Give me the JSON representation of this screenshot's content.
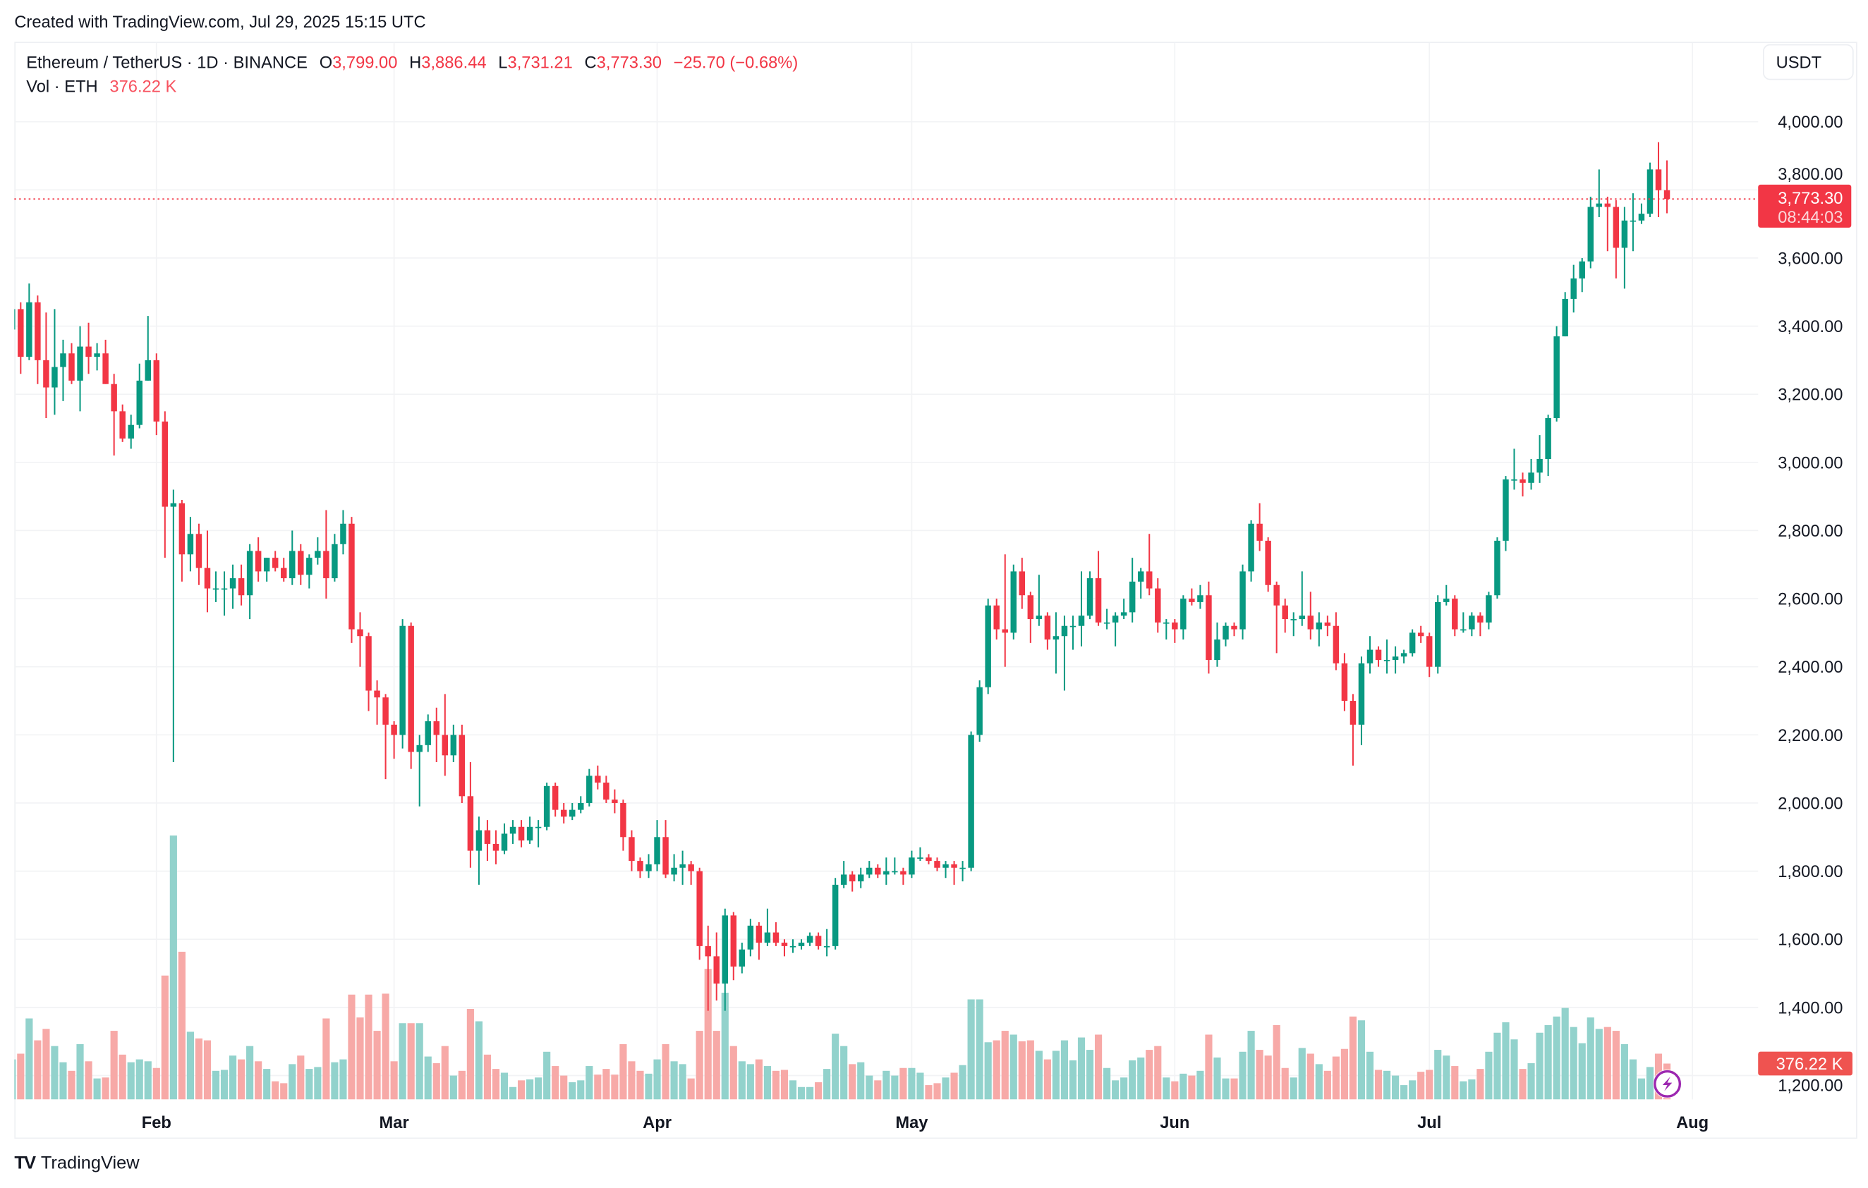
{
  "watermark": "Created with TradingView.com, Jul 29, 2025 15:15 UTC",
  "legend": {
    "symbol": "Ethereum / TetherUS · 1D · BINANCE",
    "o_label": "O",
    "o": "3,799.00",
    "h_label": "H",
    "h": "3,886.44",
    "l_label": "L",
    "l": "3,731.21",
    "c_label": "C",
    "c": "3,773.30",
    "change": "−25.70 (−0.68%)",
    "vol_label": "Vol · ETH",
    "vol": "376.22 K"
  },
  "currency_button": "USDT",
  "last_price": {
    "label": "3,773.30",
    "countdown": "08:44:03",
    "value": 3773.3
  },
  "last_volume": {
    "label": "376.22 K",
    "value": 376.22
  },
  "footer": {
    "logo_text": "TradingView",
    "logo_mark": "TV"
  },
  "icons": {
    "lightning": "lightning-icon",
    "logo": "tradingview-logo-icon"
  },
  "chart_data": {
    "type": "candlestick",
    "title": "Ethereum / TetherUS · 1D · BINANCE",
    "colors": {
      "up": "#089981",
      "down": "#f23645",
      "vol_up": "#92d2cc",
      "vol_down": "#f7a9a7",
      "lightning": "#9c27b0"
    },
    "ylim": [
      1150,
      4100
    ],
    "price_ticks": [
      "4,000.00",
      "3,800.00",
      "3,600.00",
      "3,400.00",
      "3,200.00",
      "3,000.00",
      "2,800.00",
      "2,600.00",
      "2,400.00",
      "2,200.00",
      "2,000.00",
      "1,800.00",
      "1,600.00",
      "1,400.00",
      "1,200.00"
    ],
    "price_tick_values": [
      4000,
      3800,
      3600,
      3400,
      3200,
      3000,
      2800,
      2600,
      2400,
      2200,
      2000,
      1800,
      1600,
      1400,
      1200
    ],
    "time_ticks": [
      "Feb",
      "Mar",
      "Apr",
      "May",
      "Jun",
      "Jul",
      "Aug"
    ],
    "first_date": "2025-01-15",
    "last_date": "2025-07-29",
    "grid": true,
    "candle_fields": [
      "open",
      "high",
      "low",
      "close",
      "volume_k"
    ],
    "candles": [
      [
        3390,
        3480,
        3280,
        3450,
        420
      ],
      [
        3450,
        3470,
        3260,
        3310,
        480
      ],
      [
        3310,
        3525,
        3300,
        3470,
        850
      ],
      [
        3470,
        3490,
        3230,
        3300,
        620
      ],
      [
        3300,
        3440,
        3130,
        3220,
        740
      ],
      [
        3220,
        3450,
        3140,
        3280,
        560
      ],
      [
        3280,
        3360,
        3180,
        3320,
        390
      ],
      [
        3320,
        3350,
        3230,
        3240,
        300
      ],
      [
        3240,
        3400,
        3150,
        3340,
        580
      ],
      [
        3340,
        3410,
        3260,
        3310,
        400
      ],
      [
        3310,
        3350,
        3270,
        3320,
        220
      ],
      [
        3320,
        3360,
        3230,
        3230,
        230
      ],
      [
        3230,
        3260,
        3020,
        3150,
        720
      ],
      [
        3150,
        3170,
        3060,
        3070,
        470
      ],
      [
        3070,
        3140,
        3040,
        3110,
        390
      ],
      [
        3110,
        3290,
        3100,
        3240,
        420
      ],
      [
        3240,
        3430,
        3240,
        3300,
        400
      ],
      [
        3300,
        3320,
        3080,
        3120,
        330
      ],
      [
        3120,
        3150,
        2720,
        2870,
        1300
      ],
      [
        2870,
        2920,
        2120,
        2880,
        2770
      ],
      [
        2880,
        2890,
        2650,
        2730,
        1550
      ],
      [
        2730,
        2840,
        2680,
        2790,
        710
      ],
      [
        2790,
        2820,
        2640,
        2690,
        640
      ],
      [
        2690,
        2800,
        2560,
        2630,
        620
      ],
      [
        2630,
        2680,
        2590,
        2630,
        300
      ],
      [
        2630,
        2680,
        2550,
        2630,
        310
      ],
      [
        2630,
        2700,
        2570,
        2660,
        460
      ],
      [
        2660,
        2700,
        2580,
        2610,
        420
      ],
      [
        2610,
        2760,
        2540,
        2740,
        560
      ],
      [
        2740,
        2780,
        2650,
        2680,
        400
      ],
      [
        2680,
        2720,
        2650,
        2720,
        320
      ],
      [
        2720,
        2740,
        2680,
        2690,
        190
      ],
      [
        2690,
        2720,
        2650,
        2660,
        170
      ],
      [
        2660,
        2800,
        2640,
        2740,
        370
      ],
      [
        2740,
        2760,
        2640,
        2670,
        460
      ],
      [
        2670,
        2730,
        2630,
        2720,
        320
      ],
      [
        2720,
        2780,
        2700,
        2740,
        340
      ],
      [
        2740,
        2860,
        2600,
        2660,
        850
      ],
      [
        2660,
        2790,
        2650,
        2760,
        390
      ],
      [
        2760,
        2860,
        2730,
        2820,
        420
      ],
      [
        2820,
        2840,
        2470,
        2510,
        1100
      ],
      [
        2510,
        2560,
        2400,
        2490,
        860
      ],
      [
        2490,
        2500,
        2270,
        2330,
        1100
      ],
      [
        2330,
        2360,
        2230,
        2310,
        720
      ],
      [
        2310,
        2320,
        2070,
        2230,
        1110
      ],
      [
        2230,
        2240,
        2130,
        2200,
        400
      ],
      [
        2200,
        2540,
        2160,
        2520,
        800
      ],
      [
        2520,
        2530,
        2100,
        2150,
        800
      ],
      [
        2150,
        2200,
        1990,
        2170,
        800
      ],
      [
        2170,
        2260,
        2150,
        2240,
        450
      ],
      [
        2240,
        2280,
        2120,
        2200,
        380
      ],
      [
        2200,
        2320,
        2080,
        2140,
        560
      ],
      [
        2140,
        2230,
        2120,
        2200,
        250
      ],
      [
        2200,
        2230,
        2000,
        2020,
        300
      ],
      [
        2020,
        2120,
        1810,
        1860,
        950
      ],
      [
        1860,
        1960,
        1760,
        1920,
        820
      ],
      [
        1920,
        1950,
        1830,
        1880,
        470
      ],
      [
        1880,
        1920,
        1820,
        1860,
        320
      ],
      [
        1860,
        1940,
        1850,
        1910,
        280
      ],
      [
        1910,
        1950,
        1880,
        1930,
        130
      ],
      [
        1930,
        1950,
        1870,
        1890,
        200
      ],
      [
        1890,
        1960,
        1880,
        1930,
        210
      ],
      [
        1930,
        1950,
        1870,
        1930,
        230
      ],
      [
        1930,
        2060,
        1920,
        2050,
        500
      ],
      [
        2050,
        2060,
        1960,
        1980,
        350
      ],
      [
        1980,
        2000,
        1940,
        1960,
        250
      ],
      [
        1960,
        2000,
        1950,
        1980,
        180
      ],
      [
        1980,
        2020,
        1970,
        2000,
        200
      ],
      [
        2000,
        2100,
        1990,
        2080,
        350
      ],
      [
        2080,
        2110,
        2040,
        2060,
        260
      ],
      [
        2060,
        2080,
        2000,
        2010,
        320
      ],
      [
        2010,
        2040,
        1970,
        2000,
        260
      ],
      [
        2000,
        2010,
        1860,
        1900,
        580
      ],
      [
        1900,
        1920,
        1800,
        1830,
        400
      ],
      [
        1830,
        1840,
        1780,
        1800,
        300
      ],
      [
        1800,
        1850,
        1780,
        1820,
        270
      ],
      [
        1820,
        1950,
        1800,
        1900,
        420
      ],
      [
        1900,
        1950,
        1780,
        1790,
        580
      ],
      [
        1790,
        1850,
        1770,
        1810,
        400
      ],
      [
        1810,
        1860,
        1760,
        1820,
        370
      ],
      [
        1820,
        1830,
        1760,
        1800,
        220
      ],
      [
        1800,
        1810,
        1540,
        1580,
        720
      ],
      [
        1580,
        1640,
        1390,
        1550,
        1370
      ],
      [
        1550,
        1620,
        1420,
        1470,
        720
      ],
      [
        1470,
        1690,
        1390,
        1670,
        1120
      ],
      [
        1670,
        1680,
        1480,
        1520,
        560
      ],
      [
        1520,
        1590,
        1500,
        1570,
        400
      ],
      [
        1570,
        1660,
        1550,
        1640,
        370
      ],
      [
        1640,
        1650,
        1540,
        1590,
        420
      ],
      [
        1590,
        1690,
        1580,
        1620,
        350
      ],
      [
        1620,
        1650,
        1580,
        1590,
        300
      ],
      [
        1590,
        1600,
        1550,
        1580,
        310
      ],
      [
        1580,
        1600,
        1560,
        1580,
        200
      ],
      [
        1580,
        1600,
        1570,
        1590,
        130
      ],
      [
        1590,
        1620,
        1580,
        1610,
        130
      ],
      [
        1610,
        1620,
        1570,
        1580,
        180
      ],
      [
        1580,
        1630,
        1550,
        1580,
        320
      ],
      [
        1580,
        1780,
        1570,
        1760,
        690
      ],
      [
        1760,
        1830,
        1750,
        1790,
        560
      ],
      [
        1790,
        1800,
        1740,
        1770,
        370
      ],
      [
        1770,
        1810,
        1750,
        1790,
        390
      ],
      [
        1790,
        1830,
        1780,
        1810,
        250
      ],
      [
        1810,
        1820,
        1780,
        1790,
        200
      ],
      [
        1790,
        1840,
        1760,
        1800,
        300
      ],
      [
        1800,
        1840,
        1790,
        1800,
        250
      ],
      [
        1800,
        1810,
        1760,
        1790,
        330
      ],
      [
        1790,
        1860,
        1780,
        1840,
        330
      ],
      [
        1840,
        1870,
        1830,
        1840,
        280
      ],
      [
        1840,
        1850,
        1820,
        1830,
        150
      ],
      [
        1830,
        1840,
        1800,
        1810,
        170
      ],
      [
        1810,
        1830,
        1780,
        1820,
        230
      ],
      [
        1820,
        1830,
        1760,
        1810,
        280
      ],
      [
        1810,
        1830,
        1770,
        1810,
        360
      ],
      [
        1810,
        2210,
        1800,
        2200,
        1050
      ],
      [
        2200,
        2360,
        2180,
        2340,
        1050
      ],
      [
        2340,
        2600,
        2320,
        2580,
        600
      ],
      [
        2580,
        2600,
        2480,
        2510,
        620
      ],
      [
        2510,
        2730,
        2400,
        2500,
        720
      ],
      [
        2500,
        2700,
        2480,
        2680,
        680
      ],
      [
        2680,
        2720,
        2570,
        2610,
        610
      ],
      [
        2610,
        2620,
        2470,
        2540,
        620
      ],
      [
        2540,
        2670,
        2520,
        2550,
        510
      ],
      [
        2550,
        2560,
        2450,
        2480,
        420
      ],
      [
        2480,
        2560,
        2380,
        2490,
        510
      ],
      [
        2490,
        2550,
        2330,
        2520,
        620
      ],
      [
        2520,
        2550,
        2450,
        2520,
        410
      ],
      [
        2520,
        2680,
        2460,
        2550,
        650
      ],
      [
        2550,
        2680,
        2540,
        2660,
        520
      ],
      [
        2660,
        2740,
        2520,
        2530,
        680
      ],
      [
        2530,
        2570,
        2510,
        2530,
        330
      ],
      [
        2530,
        2560,
        2460,
        2550,
        200
      ],
      [
        2550,
        2600,
        2540,
        2560,
        230
      ],
      [
        2560,
        2720,
        2530,
        2650,
        410
      ],
      [
        2650,
        2690,
        2600,
        2680,
        440
      ],
      [
        2680,
        2790,
        2610,
        2630,
        520
      ],
      [
        2630,
        2660,
        2500,
        2530,
        560
      ],
      [
        2530,
        2540,
        2480,
        2530,
        230
      ],
      [
        2530,
        2540,
        2470,
        2510,
        190
      ],
      [
        2510,
        2610,
        2480,
        2600,
        270
      ],
      [
        2600,
        2630,
        2580,
        2590,
        250
      ],
      [
        2590,
        2640,
        2570,
        2610,
        300
      ],
      [
        2610,
        2650,
        2380,
        2420,
        680
      ],
      [
        2420,
        2530,
        2400,
        2480,
        440
      ],
      [
        2480,
        2530,
        2460,
        2520,
        220
      ],
      [
        2520,
        2530,
        2490,
        2510,
        220
      ],
      [
        2510,
        2700,
        2480,
        2680,
        500
      ],
      [
        2680,
        2830,
        2650,
        2820,
        720
      ],
      [
        2820,
        2880,
        2740,
        2770,
        520
      ],
      [
        2770,
        2780,
        2620,
        2640,
        460
      ],
      [
        2640,
        2650,
        2440,
        2580,
        780
      ],
      [
        2580,
        2600,
        2500,
        2540,
        330
      ],
      [
        2540,
        2560,
        2490,
        2540,
        230
      ],
      [
        2540,
        2680,
        2520,
        2550,
        540
      ],
      [
        2550,
        2620,
        2480,
        2510,
        480
      ],
      [
        2510,
        2560,
        2460,
        2530,
        370
      ],
      [
        2530,
        2550,
        2490,
        2520,
        300
      ],
      [
        2520,
        2560,
        2390,
        2410,
        450
      ],
      [
        2410,
        2440,
        2270,
        2300,
        530
      ],
      [
        2300,
        2320,
        2110,
        2230,
        870
      ],
      [
        2230,
        2430,
        2170,
        2410,
        830
      ],
      [
        2410,
        2490,
        2380,
        2450,
        500
      ],
      [
        2450,
        2460,
        2400,
        2420,
        310
      ],
      [
        2420,
        2480,
        2380,
        2420,
        300
      ],
      [
        2420,
        2460,
        2380,
        2430,
        250
      ],
      [
        2430,
        2450,
        2410,
        2440,
        150
      ],
      [
        2440,
        2510,
        2430,
        2500,
        200
      ],
      [
        2500,
        2520,
        2470,
        2490,
        290
      ],
      [
        2490,
        2500,
        2370,
        2400,
        310
      ],
      [
        2400,
        2610,
        2380,
        2590,
        520
      ],
      [
        2590,
        2640,
        2580,
        2600,
        460
      ],
      [
        2600,
        2610,
        2490,
        2510,
        350
      ],
      [
        2510,
        2560,
        2500,
        2510,
        190
      ],
      [
        2510,
        2560,
        2490,
        2550,
        210
      ],
      [
        2550,
        2560,
        2490,
        2530,
        320
      ],
      [
        2530,
        2620,
        2510,
        2610,
        500
      ],
      [
        2610,
        2780,
        2600,
        2770,
        700
      ],
      [
        2770,
        2960,
        2740,
        2950,
        810
      ],
      [
        2950,
        3040,
        2920,
        2950,
        630
      ],
      [
        2950,
        2970,
        2900,
        2940,
        320
      ],
      [
        2940,
        3010,
        2920,
        2970,
        380
      ],
      [
        2970,
        3080,
        2940,
        3010,
        700
      ],
      [
        3010,
        3140,
        2960,
        3130,
        780
      ],
      [
        3130,
        3400,
        3120,
        3370,
        870
      ],
      [
        3370,
        3500,
        3370,
        3480,
        960
      ],
      [
        3480,
        3580,
        3440,
        3540,
        760
      ],
      [
        3540,
        3600,
        3500,
        3590,
        590
      ],
      [
        3590,
        3780,
        3570,
        3750,
        860
      ],
      [
        3750,
        3860,
        3720,
        3760,
        740
      ],
      [
        3760,
        3780,
        3620,
        3750,
        760
      ],
      [
        3750,
        3770,
        3540,
        3630,
        720
      ],
      [
        3630,
        3750,
        3510,
        3710,
        580
      ],
      [
        3710,
        3790,
        3620,
        3710,
        420
      ],
      [
        3710,
        3760,
        3700,
        3730,
        220
      ],
      [
        3730,
        3880,
        3720,
        3860,
        340
      ],
      [
        3860,
        3940,
        3720,
        3799,
        480
      ],
      [
        3799,
        3886.44,
        3731.21,
        3773.3,
        376.22
      ]
    ]
  }
}
